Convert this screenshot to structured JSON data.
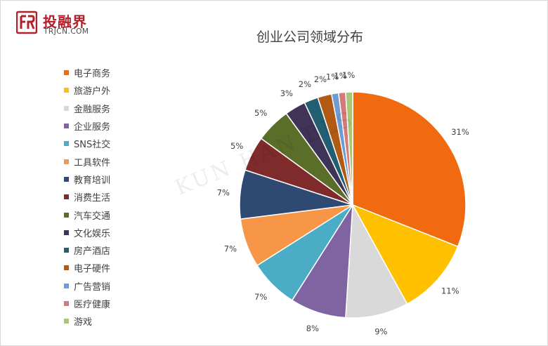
{
  "logo": {
    "text_cn": "投融界",
    "text_en": "TRJCN.COM"
  },
  "watermark": "KUN HAN BLS",
  "colors": {
    "title": "#404040",
    "logo_red": "#b3202a"
  },
  "chart_data": {
    "type": "pie",
    "title": "创业公司领域分布",
    "legend_position": "left",
    "slices": [
      {
        "label": "电子商务",
        "value": 31,
        "display": "31%",
        "color": "#F26A0F"
      },
      {
        "label": "旅游户外",
        "value": 11,
        "display": "11%",
        "color": "#FFC000"
      },
      {
        "label": "金融服务",
        "value": 9,
        "display": "9%",
        "color": "#D9D9D9"
      },
      {
        "label": "企业服务",
        "value": 8,
        "display": "8%",
        "color": "#8064A2"
      },
      {
        "label": "SNS社交",
        "value": 7,
        "display": "7%",
        "color": "#4BACC6"
      },
      {
        "label": "工具软件",
        "value": 7,
        "display": "7%",
        "color": "#F79646"
      },
      {
        "label": "教育培训",
        "value": 7,
        "display": "7%",
        "color": "#2E4A72"
      },
      {
        "label": "消费生活",
        "value": 5,
        "display": "5%",
        "color": "#7F2B2B"
      },
      {
        "label": "汽车交通",
        "value": 5,
        "display": "5%",
        "color": "#5A6E2A"
      },
      {
        "label": "文化娱乐",
        "value": 3,
        "display": "3%",
        "color": "#3F3358"
      },
      {
        "label": "房产酒店",
        "value": 2,
        "display": "2%",
        "color": "#235F72"
      },
      {
        "label": "电子硬件",
        "value": 2,
        "display": "2%",
        "color": "#B05A14"
      },
      {
        "label": "广告营销",
        "value": 1,
        "display": "1%",
        "color": "#6E9BD2"
      },
      {
        "label": "医疗健康",
        "value": 1,
        "display": "1%",
        "color": "#D47A78"
      },
      {
        "label": "游戏",
        "value": 1,
        "display": "1%",
        "color": "#A8C878"
      }
    ]
  }
}
